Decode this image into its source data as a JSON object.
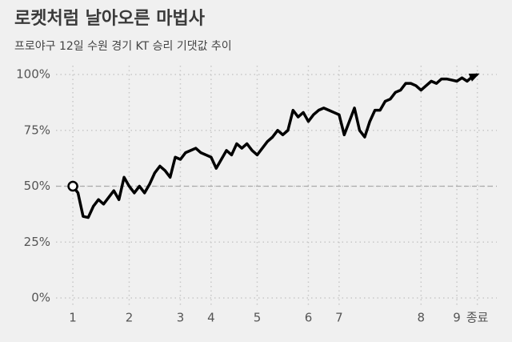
{
  "chart_data": {
    "type": "line",
    "title": "로켓처럼 날아오른 마법사",
    "subtitle": "프로야구 12일 수원 경기 KT 승리 기댓값 추이",
    "x": [
      0,
      1,
      2,
      3,
      4,
      5,
      6,
      7,
      8,
      9,
      10,
      11,
      12,
      13,
      14,
      15,
      16,
      17,
      18,
      19,
      20,
      21,
      22,
      23,
      24,
      25,
      26,
      27,
      28,
      29,
      30,
      31,
      32,
      33,
      34,
      35,
      36,
      37,
      38,
      39,
      40,
      41,
      42,
      43,
      44,
      45,
      46,
      47,
      48,
      49,
      50,
      51,
      52,
      53,
      54,
      55,
      56,
      57,
      58,
      59,
      60,
      61,
      62,
      63,
      64,
      65,
      66,
      67,
      68,
      69,
      70,
      71,
      72,
      73,
      74,
      75,
      76,
      77,
      78,
      79
    ],
    "series": [
      {
        "color": "#000000",
        "values": [
          50,
          47,
          36.5,
          36,
          41,
          44,
          42,
          45,
          48,
          44,
          54,
          50,
          47,
          50,
          47,
          51,
          56,
          59,
          57,
          54,
          63,
          62,
          65,
          66,
          67,
          65,
          64,
          63,
          58,
          62,
          66,
          64,
          69,
          67,
          69,
          66,
          64,
          67,
          70,
          72,
          75,
          73,
          75,
          84,
          81,
          83,
          79,
          82,
          84,
          85,
          84,
          83,
          82,
          73,
          79,
          85,
          75,
          72,
          79,
          84,
          84,
          88,
          89,
          92,
          93,
          96,
          96,
          95,
          93,
          95,
          97,
          96,
          98,
          98,
          97.5,
          97,
          98.5,
          97,
          99,
          100
        ]
      }
    ],
    "xlim": [
      -7.2,
      82.8
    ],
    "xticks": [
      {
        "value": 0,
        "label": "1"
      },
      {
        "value": 11,
        "label": "2"
      },
      {
        "value": 21,
        "label": "3"
      },
      {
        "value": 27,
        "label": "4"
      },
      {
        "value": 36,
        "label": "5"
      },
      {
        "value": 46,
        "label": "6"
      },
      {
        "value": 52,
        "label": "7"
      },
      {
        "value": 68,
        "label": "8"
      },
      {
        "value": 75,
        "label": "9"
      },
      {
        "value": 79,
        "label": "종료"
      }
    ],
    "ylim": [
      0,
      100
    ],
    "yticks": [
      {
        "value": 0,
        "label": "0%"
      },
      {
        "value": 25,
        "label": "25%"
      },
      {
        "value": 50,
        "label": "50%"
      },
      {
        "value": 75,
        "label": "75%"
      },
      {
        "value": 100,
        "label": "100%"
      }
    ],
    "reference_line": 50,
    "grid": true
  }
}
